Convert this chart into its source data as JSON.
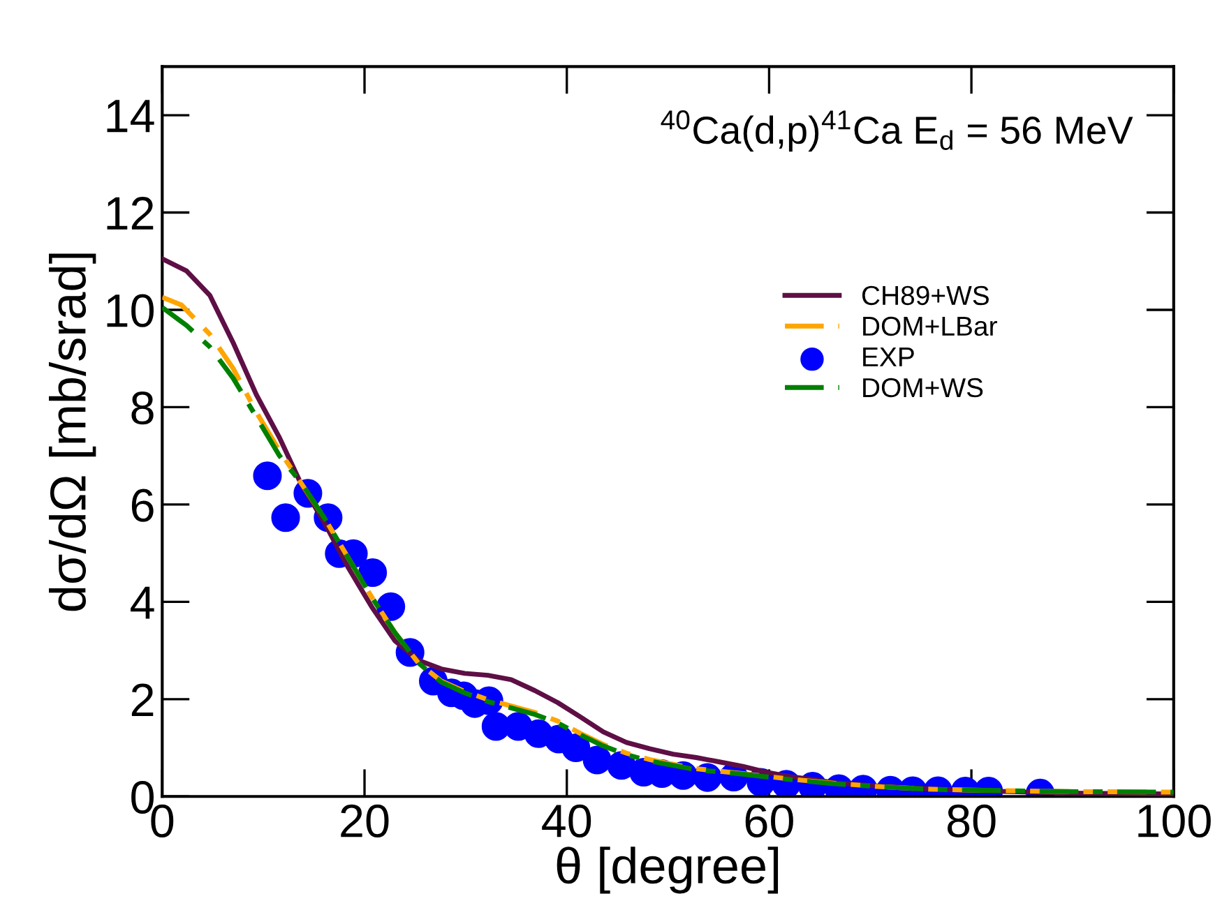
{
  "chart_data": {
    "type": "line",
    "title": "$^{40}$Ca(d,p)$^{41}$Ca E$_{d}$ = 56 MeV",
    "xlabel": "θ [degree]",
    "ylabel": "dσ/dΩ [mb/srad]",
    "xlim": [
      0,
      100
    ],
    "ylim": [
      0,
      15
    ],
    "xticks": [
      0,
      20,
      40,
      60,
      80,
      100
    ],
    "yticks": [
      0,
      2,
      4,
      6,
      8,
      10,
      12,
      14
    ],
    "grid": false,
    "legend": "right",
    "series": [
      {
        "name": "CH89+WS",
        "type": "line",
        "color": "#5e0f45",
        "line_style": "solid",
        "x": [
          0,
          2.4,
          4.7,
          7.0,
          9.3,
          11.6,
          13.6,
          16.1,
          18.4,
          20.7,
          23.0,
          25.3,
          27.6,
          29.9,
          32.2,
          34.5,
          36.8,
          39.1,
          41.3,
          43.6,
          45.9,
          48.2,
          50.5,
          52.8,
          55.1,
          57.4,
          59.7,
          62.0,
          64.3,
          66.5,
          71.1,
          75.7,
          80.3,
          89.4,
          100
        ],
        "values": [
          11.05,
          10.8,
          10.3,
          9.33,
          8.26,
          7.37,
          6.48,
          5.6,
          4.7,
          3.9,
          3.2,
          2.8,
          2.62,
          2.53,
          2.49,
          2.4,
          2.18,
          1.93,
          1.64,
          1.33,
          1.11,
          0.98,
          0.87,
          0.8,
          0.71,
          0.62,
          0.5,
          0.41,
          0.35,
          0.28,
          0.21,
          0.16,
          0.12,
          0.07,
          0.05
        ]
      },
      {
        "name": "DOM+LBar",
        "type": "line",
        "color": "#ffa500",
        "line_style": "dashdot",
        "x": [
          0,
          1.9,
          4.7,
          7.0,
          9.3,
          11.6,
          13.6,
          16.1,
          18.4,
          20.7,
          23.0,
          25.3,
          27.6,
          29.9,
          32.2,
          34.5,
          36.8,
          39.1,
          41.3,
          43.6,
          45.9,
          48.2,
          50.5,
          52.8,
          57.4,
          62.0,
          66.5,
          71.1,
          75.7,
          80.3,
          89.4,
          100
        ],
        "values": [
          10.26,
          10.1,
          9.5,
          8.8,
          7.9,
          7.1,
          6.48,
          5.7,
          4.9,
          4.1,
          3.37,
          2.75,
          2.37,
          2.16,
          1.99,
          1.86,
          1.73,
          1.55,
          1.3,
          1.07,
          0.89,
          0.76,
          0.66,
          0.57,
          0.47,
          0.36,
          0.27,
          0.2,
          0.15,
          0.13,
          0.1,
          0.09
        ]
      },
      {
        "name": "EXP",
        "type": "scatter",
        "color": "#0000ff",
        "marker": "circle",
        "x": [
          10.4,
          12.2,
          14.4,
          16.4,
          17.5,
          18.9,
          20.8,
          22.6,
          24.5,
          26.8,
          28.6,
          29.8,
          30.9,
          32.3,
          33.0,
          35.2,
          37.2,
          39.2,
          40.9,
          43.0,
          45.4,
          47.6,
          49.4,
          51.5,
          53.9,
          56.5,
          59.2,
          61.7,
          64.3,
          66.9,
          69.3,
          72.0,
          74.2,
          76.7,
          79.4,
          81.7,
          86.8
        ],
        "values": [
          6.59,
          5.73,
          6.23,
          5.73,
          4.99,
          4.99,
          4.6,
          3.9,
          2.96,
          2.37,
          2.13,
          2.07,
          1.91,
          1.97,
          1.44,
          1.44,
          1.29,
          1.18,
          1.0,
          0.75,
          0.64,
          0.5,
          0.47,
          0.43,
          0.39,
          0.4,
          0.29,
          0.25,
          0.21,
          0.16,
          0.15,
          0.13,
          0.12,
          0.12,
          0.11,
          0.11,
          0.07
        ]
      },
      {
        "name": "DOM+WS",
        "type": "line",
        "color": "#008000",
        "line_style": "dashdot",
        "x": [
          0,
          2.4,
          4.7,
          7.0,
          9.3,
          11.6,
          13.9,
          16.1,
          18.4,
          20.7,
          23.0,
          25.3,
          27.6,
          29.9,
          32.2,
          34.5,
          36.8,
          39.1,
          41.3,
          43.6,
          45.9,
          48.2,
          50.5,
          52.8,
          57.4,
          62.0,
          66.5,
          71.1,
          75.7,
          80.3,
          89.4,
          100
        ],
        "values": [
          10.05,
          9.68,
          9.24,
          8.6,
          7.8,
          7.0,
          6.4,
          5.7,
          4.9,
          4.1,
          3.37,
          2.75,
          2.35,
          2.13,
          1.95,
          1.82,
          1.69,
          1.51,
          1.27,
          1.04,
          0.86,
          0.73,
          0.64,
          0.55,
          0.46,
          0.35,
          0.26,
          0.2,
          0.15,
          0.13,
          0.1,
          0.09
        ]
      }
    ]
  }
}
